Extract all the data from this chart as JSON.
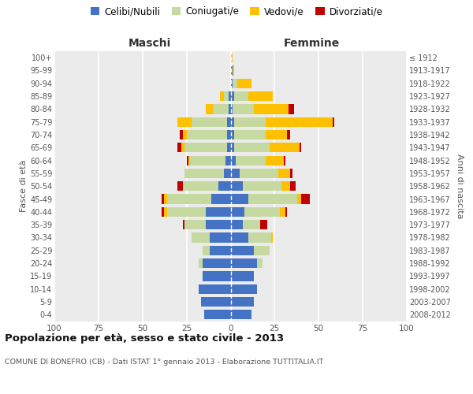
{
  "age_groups": [
    "0-4",
    "5-9",
    "10-14",
    "15-19",
    "20-24",
    "25-29",
    "30-34",
    "35-39",
    "40-44",
    "45-49",
    "50-54",
    "55-59",
    "60-64",
    "65-69",
    "70-74",
    "75-79",
    "80-84",
    "85-89",
    "90-94",
    "95-99",
    "100+"
  ],
  "birth_years": [
    "2008-2012",
    "2003-2007",
    "1998-2002",
    "1993-1997",
    "1988-1992",
    "1983-1987",
    "1978-1982",
    "1973-1977",
    "1968-1972",
    "1963-1967",
    "1958-1962",
    "1953-1957",
    "1948-1952",
    "1943-1947",
    "1938-1942",
    "1933-1937",
    "1928-1932",
    "1923-1927",
    "1918-1922",
    "1913-1917",
    "≤ 1912"
  ],
  "males": {
    "celibi": [
      15,
      17,
      18,
      16,
      16,
      12,
      12,
      14,
      14,
      11,
      7,
      4,
      3,
      2,
      2,
      2,
      1,
      1,
      0,
      0,
      0
    ],
    "coniugati": [
      0,
      0,
      0,
      0,
      2,
      4,
      10,
      12,
      22,
      25,
      20,
      22,
      20,
      24,
      23,
      20,
      9,
      3,
      0,
      0,
      0
    ],
    "vedovi": [
      0,
      0,
      0,
      0,
      0,
      0,
      0,
      0,
      2,
      2,
      0,
      0,
      1,
      2,
      2,
      8,
      4,
      2,
      0,
      0,
      0
    ],
    "divorziati": [
      0,
      0,
      0,
      0,
      0,
      0,
      0,
      1,
      1,
      1,
      3,
      0,
      1,
      2,
      2,
      0,
      0,
      0,
      0,
      0,
      0
    ]
  },
  "females": {
    "nubili": [
      12,
      13,
      15,
      13,
      15,
      13,
      10,
      7,
      8,
      10,
      7,
      5,
      3,
      2,
      2,
      2,
      1,
      2,
      1,
      1,
      0
    ],
    "coniugate": [
      0,
      0,
      0,
      0,
      3,
      9,
      13,
      10,
      20,
      28,
      22,
      22,
      17,
      20,
      18,
      18,
      12,
      8,
      3,
      0,
      0
    ],
    "vedove": [
      0,
      0,
      0,
      0,
      0,
      0,
      1,
      0,
      3,
      2,
      5,
      7,
      10,
      17,
      12,
      38,
      20,
      14,
      8,
      1,
      1
    ],
    "divorziate": [
      0,
      0,
      0,
      0,
      0,
      0,
      0,
      4,
      1,
      5,
      3,
      1,
      1,
      1,
      2,
      1,
      3,
      0,
      0,
      0,
      0
    ]
  },
  "color_celibi": "#4472c4",
  "color_coniugati": "#c5d9a0",
  "color_vedovi": "#ffc000",
  "color_divorziati": "#c00000",
  "xlim": 100,
  "title": "Popolazione per età, sesso e stato civile - 2013",
  "subtitle": "COMUNE DI BONEFRO (CB) - Dati ISTAT 1° gennaio 2013 - Elaborazione TUTTITALIA.IT",
  "ylabel_left": "Fasce di età",
  "ylabel_right": "Anni di nascita",
  "xlabel_left": "Maschi",
  "xlabel_right": "Femmine",
  "bg_color": "#ffffff",
  "plot_bg": "#ebebeb"
}
